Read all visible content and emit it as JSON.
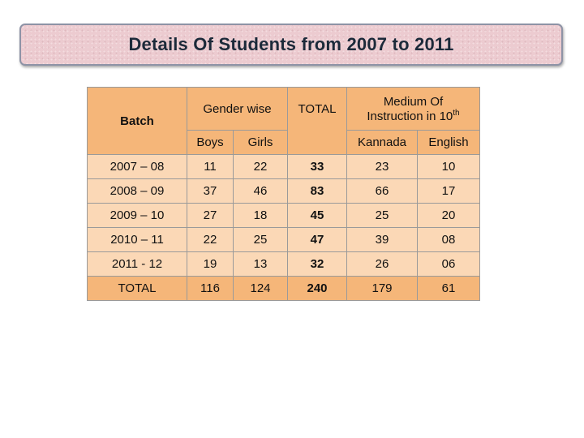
{
  "title": "Details Of Students from 2007 to 2011",
  "table": {
    "header": {
      "batch": "Batch",
      "gender_wise": "Gender wise",
      "total": "TOTAL",
      "medium_line1": "Medium Of",
      "medium_line2": "Instruction in 10",
      "medium_sup": "th",
      "boys": "Boys",
      "girls": "Girls",
      "kannada": "Kannada",
      "english": "English"
    },
    "rows": [
      {
        "batch": "2007 – 08",
        "boys": "11",
        "girls": "22",
        "total": "33",
        "kannada": "23",
        "english": "10"
      },
      {
        "batch": "2008 – 09",
        "boys": "37",
        "girls": "46",
        "total": "83",
        "kannada": "66",
        "english": "17"
      },
      {
        "batch": "2009 – 10",
        "boys": "27",
        "girls": "18",
        "total": "45",
        "kannada": "25",
        "english": "20"
      },
      {
        "batch": "2010 – 11",
        "boys": "22",
        "girls": "25",
        "total": "47",
        "kannada": "39",
        "english": "08"
      },
      {
        "batch": "2011 - 12",
        "boys": "19",
        "girls": "13",
        "total": "32",
        "kannada": "26",
        "english": "06"
      }
    ],
    "total_row": {
      "batch": "TOTAL",
      "boys": "116",
      "girls": "124",
      "total": "240",
      "kannada": "179",
      "english": "61"
    }
  },
  "colors": {
    "header_bg": "#f5b679",
    "body_bg": "#fbd8b6",
    "banner_bg": "#eccbd0",
    "banner_border": "#8e93a6"
  }
}
